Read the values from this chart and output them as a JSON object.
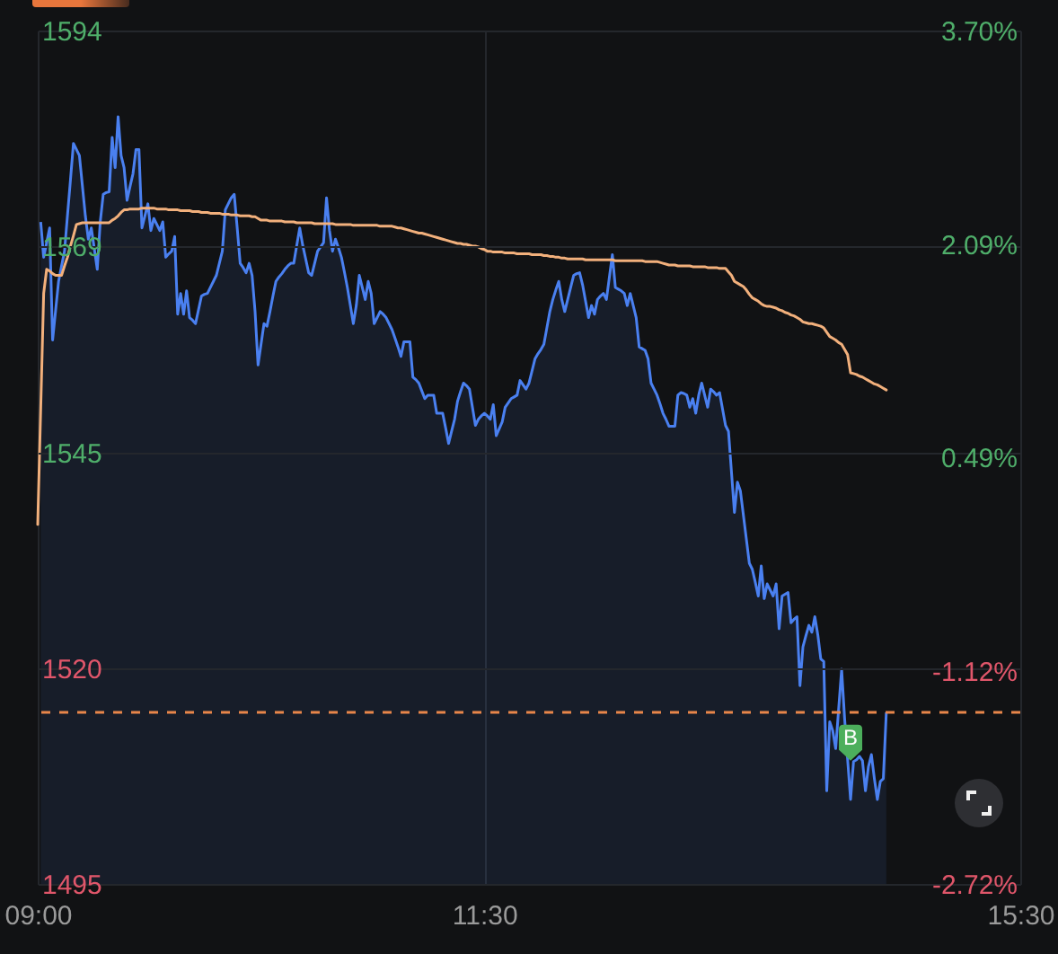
{
  "chart_data": {
    "type": "area",
    "categories": [
      "09:00",
      null,
      null,
      null,
      null,
      null,
      null,
      null,
      null,
      null,
      null,
      null,
      null,
      null,
      null,
      null,
      null,
      null,
      null,
      null,
      null,
      null,
      null,
      null,
      null,
      null,
      null,
      null,
      null,
      null,
      null,
      null,
      null,
      null,
      null,
      null,
      null,
      null,
      null,
      null,
      null,
      null,
      null,
      null,
      null,
      null,
      null,
      null,
      null,
      null,
      null,
      null,
      null,
      null,
      null,
      null,
      null,
      null,
      null,
      null,
      null,
      null,
      null,
      null,
      null,
      null,
      null,
      null,
      null,
      null,
      null,
      null,
      null,
      null,
      null,
      null,
      null,
      null,
      null,
      null,
      null,
      null,
      null,
      null,
      null,
      null,
      null,
      null,
      null,
      null,
      null,
      null,
      null,
      null,
      null,
      null,
      null,
      null,
      null,
      null,
      null,
      null,
      null,
      null,
      null,
      null,
      null,
      null,
      null,
      null,
      null,
      null,
      null,
      null,
      null,
      null,
      null,
      null,
      null,
      null,
      null,
      null,
      null,
      null,
      null,
      null,
      null,
      null,
      null,
      null,
      null,
      null,
      null,
      null,
      null,
      null,
      null,
      null,
      null,
      null,
      null,
      null,
      null,
      null,
      null,
      null,
      null,
      null,
      null,
      null,
      "11:30",
      null,
      null,
      null,
      null,
      null,
      null,
      null,
      null,
      null,
      null,
      null,
      null,
      null,
      null,
      null,
      null,
      null,
      null,
      null,
      null,
      null,
      null,
      null,
      null,
      null,
      null,
      null,
      null,
      null,
      null,
      null,
      null,
      null,
      null,
      null,
      null,
      null,
      null,
      null,
      null,
      null,
      null,
      null,
      null,
      null,
      null,
      null,
      null,
      null,
      null,
      null,
      null,
      null,
      null,
      null,
      null,
      null,
      null,
      null,
      null,
      null,
      null,
      null,
      null,
      null,
      null,
      null,
      null,
      null,
      null,
      null,
      null,
      null,
      null,
      null,
      null,
      null,
      null,
      null,
      null,
      null,
      null,
      null,
      null,
      null,
      null,
      null,
      null,
      null,
      null,
      null,
      null,
      null,
      null,
      null,
      null,
      null,
      null,
      null,
      null,
      null,
      null,
      null,
      null,
      null,
      null,
      null,
      null,
      null,
      null,
      null,
      null,
      null,
      null,
      null,
      null,
      null,
      null,
      null,
      null,
      null,
      null,
      null,
      null,
      null,
      null,
      null,
      null,
      null,
      null,
      null,
      null,
      null,
      null,
      null,
      null,
      null,
      null,
      null,
      null,
      null,
      null,
      null,
      null,
      null,
      null,
      null,
      null,
      null,
      null,
      null,
      null,
      null,
      null,
      null,
      null,
      null,
      null,
      null,
      null,
      null,
      null,
      null,
      null,
      null,
      null,
      null,
      null,
      null,
      null,
      null,
      null,
      null,
      null,
      null,
      null,
      null,
      null,
      null,
      "15:30"
    ],
    "series": [
      {
        "color": "#4a80f0",
        "values": [
          null,
          1571.8,
          1567.7,
          1569.4,
          1571.1,
          1558.1,
          1561.5,
          1564.9,
          1566.7,
          1568.4,
          1572.6,
          1576.7,
          1580.9,
          1580.2,
          1579.5,
          1576.0,
          1572.5,
          1569.8,
          1571.1,
          1568.7,
          1566.3,
          1571.8,
          1575.0,
          1575.2,
          1575.3,
          1581.6,
          1578.1,
          1584.0,
          1579.5,
          1578.1,
          1574.3,
          1575.9,
          1577.4,
          1580.2,
          1580.2,
          1571.1,
          1572.5,
          1573.9,
          1570.8,
          1572.2,
          1571.5,
          1570.8,
          1571.8,
          1567.7,
          1568.1,
          1568.4,
          1570.1,
          1561.1,
          1563.5,
          1561.1,
          1563.8,
          1560.7,
          1560.4,
          1560.0,
          1561.6,
          1563.2,
          1563.4,
          1563.5,
          1564.2,
          1564.9,
          1565.6,
          1567.0,
          1568.4,
          1573.2,
          1573.9,
          1574.6,
          1575.0,
          1571.1,
          1567.0,
          1566.5,
          1565.9,
          1567.0,
          1565.6,
          1561.4,
          1555.2,
          1557.6,
          1560.0,
          1559.7,
          1561.4,
          1563.2,
          1564.9,
          1565.4,
          1565.8,
          1566.3,
          1566.7,
          1567.0,
          1567.0,
          1569.1,
          1571.1,
          1569.1,
          1567.5,
          1565.9,
          1565.6,
          1567.0,
          1568.4,
          1568.9,
          1569.4,
          1574.6,
          1570.8,
          1568.4,
          1569.8,
          1568.8,
          1567.7,
          1566.0,
          1564.2,
          1562.1,
          1560.0,
          1562.1,
          1565.6,
          1564.2,
          1562.8,
          1564.9,
          1563.5,
          1560.0,
          1560.7,
          1561.4,
          1561.1,
          1560.7,
          1560.0,
          1559.3,
          1558.3,
          1557.3,
          1556.2,
          1557.9,
          1557.9,
          1557.9,
          1553.8,
          1553.5,
          1553.1,
          1552.2,
          1551.3,
          1551.7,
          1551.7,
          1551.7,
          1549.6,
          1549.6,
          1549.6,
          1547.9,
          1546.1,
          1547.5,
          1548.9,
          1551.0,
          1552.1,
          1553.1,
          1552.8,
          1552.4,
          1550.3,
          1548.2,
          1548.9,
          1549.3,
          1549.6,
          1549.3,
          1548.9,
          1550.6,
          1547.0,
          1547.8,
          1548.6,
          1550.3,
          1550.8,
          1551.3,
          1551.5,
          1551.7,
          1553.4,
          1552.9,
          1552.4,
          1553.1,
          1554.5,
          1555.9,
          1556.5,
          1557.0,
          1557.6,
          1559.5,
          1561.4,
          1562.8,
          1563.9,
          1564.9,
          1562.8,
          1561.4,
          1562.8,
          1564.2,
          1565.6,
          1565.8,
          1565.9,
          1564.5,
          1562.6,
          1560.7,
          1562.1,
          1561.1,
          1562.8,
          1563.2,
          1563.5,
          1562.8,
          1565.4,
          1568.0,
          1564.2,
          1564.0,
          1563.8,
          1563.5,
          1562.1,
          1563.5,
          1562.1,
          1560.7,
          1557.3,
          1557.1,
          1556.9,
          1555.9,
          1553.1,
          1552.4,
          1551.7,
          1550.7,
          1549.6,
          1548.9,
          1548.1,
          1548.1,
          1548.1,
          1551.7,
          1552.0,
          1551.9,
          1551.7,
          1550.3,
          1551.3,
          1549.6,
          1551.7,
          1553.1,
          1551.7,
          1550.3,
          1552.4,
          1552.1,
          1551.7,
          1552.0,
          1550.1,
          1548.2,
          1547.5,
          1542.8,
          1538.1,
          1541.6,
          1540.6,
          1537.8,
          1535.0,
          1532.2,
          1531.5,
          1530.0,
          1528.4,
          1531.9,
          1528.1,
          1529.8,
          1529.1,
          1528.4,
          1529.8,
          1524.6,
          1528.4,
          1528.6,
          1528.8,
          1525.3,
          1525.7,
          1526.0,
          1518.0,
          1522.5,
          1523.8,
          1525.0,
          1524.2,
          1526.0,
          1523.9,
          1521.1,
          1520.8,
          1505.8,
          1513.8,
          1512.8,
          1510.7,
          1515.3,
          1519.9,
          1514.2,
          1509.5,
          1504.8,
          1509.2,
          1509.4,
          1509.8,
          1509.3,
          1505.8,
          1508.6,
          1510.0,
          1507.2,
          1504.8,
          1506.9,
          1507.2,
          1514.9,
          null,
          null,
          null,
          null,
          null,
          null,
          null,
          null,
          null,
          null,
          null,
          null,
          null,
          null,
          null,
          null,
          null,
          null,
          null,
          null,
          null,
          null,
          null,
          null,
          null,
          null,
          null,
          null,
          null,
          null,
          null,
          null,
          null,
          null,
          null,
          null,
          null,
          null,
          null,
          null,
          null,
          null,
          null,
          null,
          null
        ]
      },
      {
        "type": "line",
        "color": "#f2b07c",
        "values": [
          1536.7,
          1550.1,
          1563.5,
          1566.3,
          1566.1,
          1565.8,
          1565.6,
          1565.6,
          1565.6,
          1566.7,
          1567.7,
          1569.0,
          1570.2,
          1571.5,
          1571.6,
          1571.7,
          1571.7,
          1571.7,
          1571.7,
          1571.7,
          1571.7,
          1571.7,
          1571.7,
          1571.7,
          1571.7,
          1572.0,
          1572.2,
          1572.5,
          1572.9,
          1573.2,
          1573.2,
          1573.3,
          1573.3,
          1573.3,
          1573.3,
          1573.4,
          1573.4,
          1573.4,
          1573.4,
          1573.4,
          1573.3,
          1573.3,
          1573.3,
          1573.3,
          1573.2,
          1573.2,
          1573.2,
          1573.2,
          1573.1,
          1573.1,
          1573.1,
          1573.1,
          1573.0,
          1573.0,
          1573.0,
          1572.9,
          1572.9,
          1572.9,
          1572.8,
          1572.8,
          1572.8,
          1572.8,
          1572.7,
          1572.7,
          1572.7,
          1572.6,
          1572.6,
          1572.6,
          1572.5,
          1572.5,
          1572.5,
          1572.5,
          1572.4,
          1572.4,
          1572.2,
          1572.0,
          1572.0,
          1572.0,
          1571.9,
          1571.9,
          1571.9,
          1571.9,
          1571.9,
          1571.8,
          1571.8,
          1571.8,
          1571.8,
          1571.7,
          1571.7,
          1571.7,
          1571.7,
          1571.7,
          1571.7,
          1571.6,
          1571.6,
          1571.6,
          1571.6,
          1571.6,
          1571.6,
          1571.6,
          1571.5,
          1571.5,
          1571.5,
          1571.5,
          1571.5,
          1571.5,
          1571.4,
          1571.4,
          1571.4,
          1571.4,
          1571.4,
          1571.4,
          1571.4,
          1571.4,
          1571.4,
          1571.3,
          1571.3,
          1571.3,
          1571.3,
          1571.3,
          1571.2,
          1571.1,
          1571.1,
          1571.0,
          1570.9,
          1570.8,
          1570.7,
          1570.6,
          1570.5,
          1570.5,
          1570.4,
          1570.3,
          1570.2,
          1570.1,
          1570.0,
          1569.9,
          1569.8,
          1569.7,
          1569.6,
          1569.5,
          1569.4,
          1569.3,
          1569.3,
          1569.2,
          1569.2,
          1569.1,
          1569.0,
          1569.0,
          1568.9,
          1568.7,
          1568.6,
          1568.4,
          1568.4,
          1568.3,
          1568.3,
          1568.3,
          1568.3,
          1568.2,
          1568.2,
          1568.2,
          1568.2,
          1568.1,
          1568.1,
          1568.1,
          1568.1,
          1568.1,
          1568.0,
          1568.0,
          1568.0,
          1568.0,
          1567.9,
          1567.9,
          1567.8,
          1567.8,
          1567.7,
          1567.7,
          1567.6,
          1567.6,
          1567.5,
          1567.5,
          1567.5,
          1567.5,
          1567.5,
          1567.5,
          1567.4,
          1567.4,
          1567.4,
          1567.4,
          1567.4,
          1567.4,
          1567.4,
          1567.4,
          1567.4,
          1567.4,
          1567.3,
          1567.3,
          1567.3,
          1567.3,
          1567.3,
          1567.3,
          1567.3,
          1567.3,
          1567.3,
          1567.3,
          1567.2,
          1567.2,
          1567.2,
          1567.2,
          1567.2,
          1567.1,
          1567.0,
          1566.9,
          1566.8,
          1566.8,
          1566.8,
          1566.7,
          1566.7,
          1566.7,
          1566.7,
          1566.7,
          1566.6,
          1566.6,
          1566.6,
          1566.6,
          1566.6,
          1566.5,
          1566.5,
          1566.5,
          1566.5,
          1566.4,
          1566.4,
          1566.4,
          1566.0,
          1565.6,
          1564.9,
          1564.7,
          1564.5,
          1564.3,
          1563.9,
          1563.4,
          1563.0,
          1562.8,
          1562.6,
          1562.3,
          1562.1,
          1562.0,
          1562.0,
          1561.9,
          1561.8,
          1561.6,
          1561.5,
          1561.3,
          1561.2,
          1561.0,
          1560.9,
          1560.7,
          1560.5,
          1560.2,
          1560.1,
          1560.0,
          1560.0,
          1559.9,
          1559.8,
          1559.7,
          1559.5,
          1559.0,
          1558.5,
          1558.3,
          1558.1,
          1557.8,
          1557.6,
          1557.0,
          1556.4,
          1554.3,
          1554.2,
          1554.1,
          1553.9,
          1553.8,
          1553.6,
          1553.4,
          1553.2,
          1553.0,
          1552.9,
          1552.7,
          1552.5,
          1552.3,
          null,
          null,
          null,
          null,
          null,
          null,
          null,
          null,
          null,
          null,
          null,
          null,
          null,
          null,
          null,
          null,
          null,
          null,
          null,
          null,
          null,
          null,
          null,
          null,
          null,
          null,
          null,
          null,
          null,
          null,
          null,
          null,
          null,
          null,
          null,
          null,
          null,
          null,
          null,
          null,
          null,
          null,
          null,
          null,
          null
        ]
      },
      {
        "type": "scatter",
        "name": "B",
        "color": "#4caf5c",
        "values": [
          null,
          null,
          null,
          null,
          null,
          null,
          null,
          null,
          null,
          null,
          null,
          null,
          null,
          null,
          null,
          null,
          null,
          null,
          null,
          null,
          null,
          null,
          null,
          null,
          null,
          null,
          null,
          null,
          null,
          null,
          null,
          null,
          null,
          null,
          null,
          null,
          null,
          null,
          null,
          null,
          null,
          null,
          null,
          null,
          null,
          null,
          null,
          null,
          null,
          null,
          null,
          null,
          null,
          null,
          null,
          null,
          null,
          null,
          null,
          null,
          null,
          null,
          null,
          null,
          null,
          null,
          null,
          null,
          null,
          null,
          null,
          null,
          null,
          null,
          null,
          null,
          null,
          null,
          null,
          null,
          null,
          null,
          null,
          null,
          null,
          null,
          null,
          null,
          null,
          null,
          null,
          null,
          null,
          null,
          null,
          null,
          null,
          null,
          null,
          null,
          null,
          null,
          null,
          null,
          null,
          null,
          null,
          null,
          null,
          null,
          null,
          null,
          null,
          null,
          null,
          null,
          null,
          null,
          null,
          null,
          null,
          null,
          null,
          null,
          null,
          null,
          null,
          null,
          null,
          null,
          null,
          null,
          null,
          null,
          null,
          null,
          null,
          null,
          null,
          null,
          null,
          null,
          null,
          null,
          null,
          null,
          null,
          null,
          null,
          null,
          null,
          null,
          null,
          null,
          null,
          null,
          null,
          null,
          null,
          null,
          null,
          null,
          null,
          null,
          null,
          null,
          null,
          null,
          null,
          null,
          null,
          null,
          null,
          null,
          null,
          null,
          null,
          null,
          null,
          null,
          null,
          null,
          null,
          null,
          null,
          null,
          null,
          null,
          null,
          null,
          null,
          null,
          null,
          null,
          null,
          null,
          null,
          null,
          null,
          null,
          null,
          null,
          null,
          null,
          null,
          null,
          null,
          null,
          null,
          null,
          null,
          null,
          null,
          null,
          null,
          null,
          null,
          null,
          null,
          null,
          null,
          null,
          null,
          null,
          null,
          null,
          null,
          null,
          null,
          null,
          null,
          null,
          null,
          null,
          null,
          null,
          null,
          null,
          null,
          null,
          null,
          null,
          null,
          null,
          null,
          null,
          null,
          null,
          null,
          null,
          null,
          null,
          null,
          null,
          null,
          null,
          null,
          null,
          null,
          null,
          null,
          null,
          null,
          null,
          null,
          null,
          null,
          null,
          null,
          null,
          null,
          null,
          null,
          1511.4,
          null,
          null,
          null,
          null,
          null,
          null,
          null,
          null,
          null,
          null,
          null,
          null,
          null,
          null,
          null,
          null,
          null,
          null,
          null,
          null,
          null,
          null,
          null,
          null,
          null,
          null,
          null,
          null,
          null,
          null,
          null,
          null,
          null,
          null,
          null,
          null,
          null,
          null,
          null,
          null,
          null,
          null,
          null,
          null,
          null,
          null,
          null,
          null,
          null,
          null,
          null,
          null,
          null,
          null,
          null,
          null,
          null
        ]
      }
    ],
    "ylim": [
      1495,
      1594
    ],
    "yticks": [
      1495,
      1520,
      1545,
      1569,
      1594
    ],
    "y2lim": [
      -2.72,
      3.7
    ],
    "y2ticks": [
      {
        "value": -2.72,
        "label": "-2.72%"
      },
      {
        "value": -1.12,
        "label": "-1.12%"
      },
      {
        "value": 0.49,
        "label": "0.49%"
      },
      {
        "value": 2.09,
        "label": "2.09%"
      },
      {
        "value": 3.7,
        "label": "3.70%"
      }
    ],
    "grid": true,
    "ref_lines": [
      {
        "axis": "y",
        "value": 1514.9,
        "color": "#e8864a",
        "line_style": "dashed"
      }
    ]
  }
}
